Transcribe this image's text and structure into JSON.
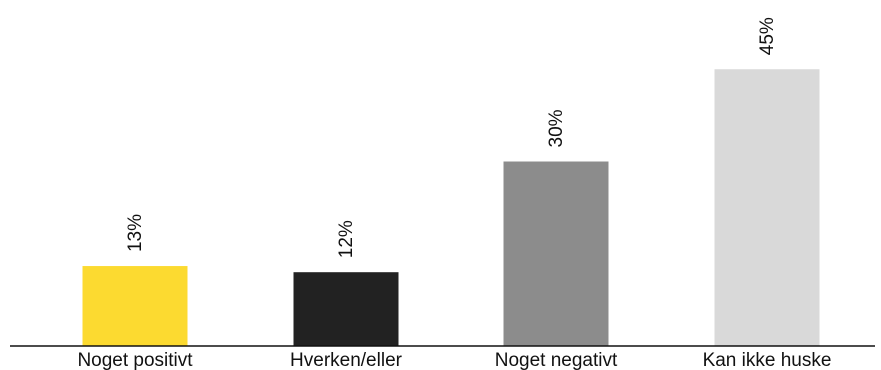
{
  "chart_data": {
    "type": "bar",
    "categories": [
      "Noget positivt",
      "Hverken/eller",
      "Noget negativt",
      "Kan ikke huske"
    ],
    "values": [
      13,
      12,
      30,
      45
    ],
    "value_labels": [
      "13%",
      "12%",
      "30%",
      "45%"
    ],
    "colors": [
      "#FCDA30",
      "#222222",
      "#8C8C8C",
      "#D9D9D9"
    ],
    "title": "",
    "xlabel": "",
    "ylabel": "",
    "ylim": [
      0,
      50
    ],
    "grid": false,
    "legend": "none"
  }
}
